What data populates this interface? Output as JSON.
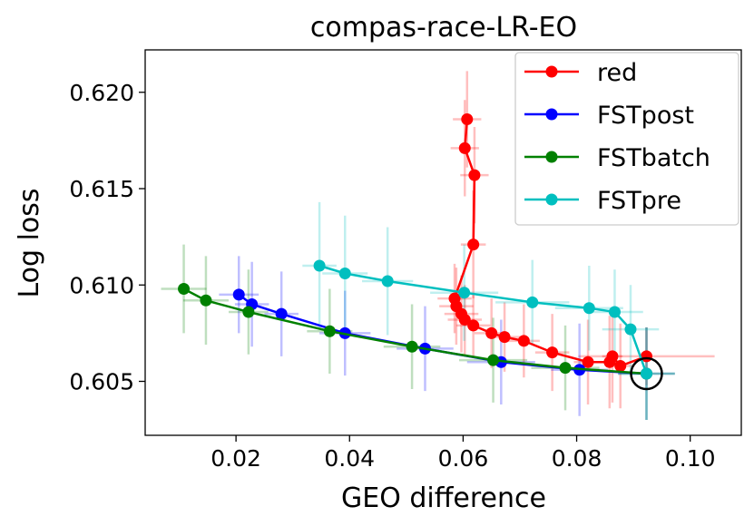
{
  "chart_data": {
    "type": "scatter",
    "title": "compas-race-LR-EO",
    "xlabel": "GEO difference",
    "ylabel": "Log loss",
    "xlim": [
      0.004,
      0.109
    ],
    "ylim": [
      0.6022,
      0.6222
    ],
    "xticks": [
      0.02,
      0.04,
      0.06,
      0.08,
      0.1
    ],
    "xtick_labels": [
      "0.02",
      "0.04",
      "0.06",
      "0.08",
      "0.10"
    ],
    "yticks": [
      0.605,
      0.61,
      0.615,
      0.62
    ],
    "ytick_labels": [
      "0.605",
      "0.610",
      "0.615",
      "0.620"
    ],
    "grid": false,
    "legend_position": "top-right",
    "series": [
      {
        "name": "red",
        "color": "#ff0000",
        "points": [
          {
            "x": 0.0607,
            "y": 0.6186,
            "xerr": 0.0025,
            "yerr": 0.0025
          },
          {
            "x": 0.0603,
            "y": 0.6171,
            "xerr": 0.0025,
            "yerr": 0.0025
          },
          {
            "x": 0.062,
            "y": 0.6157,
            "xerr": 0.0025,
            "yerr": 0.0025
          },
          {
            "x": 0.0618,
            "y": 0.6121,
            "xerr": 0.0022,
            "yerr": 0.0028
          },
          {
            "x": 0.0585,
            "y": 0.6093,
            "xerr": 0.003,
            "yerr": 0.0018
          },
          {
            "x": 0.0588,
            "y": 0.6089,
            "xerr": 0.003,
            "yerr": 0.002
          },
          {
            "x": 0.0597,
            "y": 0.6085,
            "xerr": 0.003,
            "yerr": 0.002
          },
          {
            "x": 0.0603,
            "y": 0.6082,
            "xerr": 0.003,
            "yerr": 0.0018
          },
          {
            "x": 0.0618,
            "y": 0.6079,
            "xerr": 0.003,
            "yerr": 0.0017
          },
          {
            "x": 0.065,
            "y": 0.6075,
            "xerr": 0.003,
            "yerr": 0.0018
          },
          {
            "x": 0.0673,
            "y": 0.6073,
            "xerr": 0.003,
            "yerr": 0.0018
          },
          {
            "x": 0.0707,
            "y": 0.6071,
            "xerr": 0.0028,
            "yerr": 0.0019
          },
          {
            "x": 0.0757,
            "y": 0.6065,
            "xerr": 0.003,
            "yerr": 0.002
          },
          {
            "x": 0.082,
            "y": 0.606,
            "xerr": 0.0025,
            "yerr": 0.0022
          },
          {
            "x": 0.0858,
            "y": 0.606,
            "xerr": 0.0023,
            "yerr": 0.0024
          },
          {
            "x": 0.0863,
            "y": 0.6063,
            "xerr": 0.0018,
            "yerr": 0.0024
          },
          {
            "x": 0.0877,
            "y": 0.6058,
            "xerr": 0.0025,
            "yerr": 0.0022
          },
          {
            "x": 0.0923,
            "y": 0.6063,
            "xerr": 0.012,
            "yerr": 0.0015
          }
        ]
      },
      {
        "name": "FSTpost",
        "color": "#0000ff",
        "points": [
          {
            "x": 0.0205,
            "y": 0.6095,
            "xerr": 0.0035,
            "yerr": 0.002
          },
          {
            "x": 0.0228,
            "y": 0.609,
            "xerr": 0.003,
            "yerr": 0.0022
          },
          {
            "x": 0.028,
            "y": 0.6085,
            "xerr": 0.003,
            "yerr": 0.0022
          },
          {
            "x": 0.0392,
            "y": 0.6075,
            "xerr": 0.0045,
            "yerr": 0.0022
          },
          {
            "x": 0.0533,
            "y": 0.6067,
            "xerr": 0.005,
            "yerr": 0.0022
          },
          {
            "x": 0.0667,
            "y": 0.606,
            "xerr": 0.006,
            "yerr": 0.0022
          },
          {
            "x": 0.0805,
            "y": 0.6056,
            "xerr": 0.005,
            "yerr": 0.0024
          },
          {
            "x": 0.0923,
            "y": 0.6054,
            "xerr": 0.005,
            "yerr": 0.0024
          }
        ]
      },
      {
        "name": "FSTbatch",
        "color": "#008000",
        "points": [
          {
            "x": 0.0108,
            "y": 0.6098,
            "xerr": 0.004,
            "yerr": 0.0023
          },
          {
            "x": 0.0147,
            "y": 0.6092,
            "xerr": 0.004,
            "yerr": 0.0023
          },
          {
            "x": 0.0222,
            "y": 0.6086,
            "xerr": 0.0035,
            "yerr": 0.0022
          },
          {
            "x": 0.0365,
            "y": 0.6076,
            "xerr": 0.004,
            "yerr": 0.0022
          },
          {
            "x": 0.051,
            "y": 0.6068,
            "xerr": 0.005,
            "yerr": 0.0022
          },
          {
            "x": 0.0653,
            "y": 0.6061,
            "xerr": 0.006,
            "yerr": 0.0022
          },
          {
            "x": 0.078,
            "y": 0.6057,
            "xerr": 0.006,
            "yerr": 0.0022
          },
          {
            "x": 0.0923,
            "y": 0.6054,
            "xerr": 0.005,
            "yerr": 0.0024
          }
        ]
      },
      {
        "name": "FSTpre",
        "color": "#00bfbf",
        "points": [
          {
            "x": 0.0347,
            "y": 0.611,
            "xerr": 0.003,
            "yerr": 0.0033
          },
          {
            "x": 0.0392,
            "y": 0.6106,
            "xerr": 0.004,
            "yerr": 0.003
          },
          {
            "x": 0.0467,
            "y": 0.6102,
            "xerr": 0.0045,
            "yerr": 0.0028
          },
          {
            "x": 0.0602,
            "y": 0.6096,
            "xerr": 0.006,
            "yerr": 0.0025
          },
          {
            "x": 0.0722,
            "y": 0.6091,
            "xerr": 0.0065,
            "yerr": 0.0022
          },
          {
            "x": 0.0822,
            "y": 0.6088,
            "xerr": 0.006,
            "yerr": 0.0022
          },
          {
            "x": 0.0867,
            "y": 0.6086,
            "xerr": 0.005,
            "yerr": 0.0022
          },
          {
            "x": 0.0895,
            "y": 0.6077,
            "xerr": 0.005,
            "yerr": 0.0023
          },
          {
            "x": 0.0923,
            "y": 0.6054,
            "xerr": 0.005,
            "yerr": 0.0024
          }
        ]
      }
    ],
    "annotations": [
      {
        "type": "circle-marker",
        "x": 0.0923,
        "y": 0.6054,
        "color": "#000000"
      }
    ]
  }
}
